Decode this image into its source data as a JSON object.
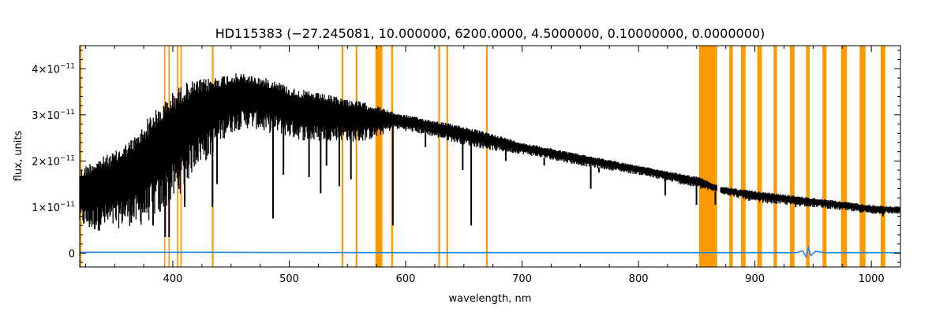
{
  "chart_data": {
    "type": "line",
    "title": "HD115383   (−27.245081, 10.000000, 6200.0000, 4.5000000, 0.10000000, 0.0000000)",
    "xlabel": "wavelength, nm",
    "ylabel": "flux, units",
    "xlim": [
      320,
      1025
    ],
    "ylim": [
      -3e-12,
      4.5e-11
    ],
    "x_ticks": [
      {
        "value": 400,
        "label": "400"
      },
      {
        "value": 500,
        "label": "500"
      },
      {
        "value": 600,
        "label": "600"
      },
      {
        "value": 700,
        "label": "700"
      },
      {
        "value": 800,
        "label": "800"
      },
      {
        "value": 900,
        "label": "900"
      },
      {
        "value": 1000,
        "label": "1000"
      }
    ],
    "y_ticks": [
      {
        "value": 0,
        "mantissa": "0",
        "exponent": ""
      },
      {
        "value": 1e-11,
        "mantissa": "1×10",
        "exponent": "−11"
      },
      {
        "value": 2e-11,
        "mantissa": "2×10",
        "exponent": "−11"
      },
      {
        "value": 3e-11,
        "mantissa": "3×10",
        "exponent": "−11"
      },
      {
        "value": 4e-11,
        "mantissa": "4×10",
        "exponent": "−11"
      }
    ],
    "colors": {
      "spectrum": "#000000",
      "error": "#1e88e5",
      "mask": "#ff9900",
      "axes": "#000000"
    },
    "series": [
      {
        "role": "spectrum-envelope",
        "upper": [
          [
            320,
            1.8e-11
          ],
          [
            330,
            2e-11
          ],
          [
            340,
            2.1e-11
          ],
          [
            350,
            2.2e-11
          ],
          [
            360,
            2.4e-11
          ],
          [
            370,
            2.6e-11
          ],
          [
            380,
            3e-11
          ],
          [
            390,
            3.2e-11
          ],
          [
            400,
            3.5e-11
          ],
          [
            410,
            3.7e-11
          ],
          [
            420,
            3.75e-11
          ],
          [
            430,
            3.8e-11
          ],
          [
            440,
            3.85e-11
          ],
          [
            450,
            3.9e-11
          ],
          [
            460,
            3.9e-11
          ],
          [
            470,
            3.85e-11
          ],
          [
            480,
            3.8e-11
          ],
          [
            490,
            3.75e-11
          ],
          [
            500,
            3.6e-11
          ],
          [
            520,
            3.5e-11
          ],
          [
            540,
            3.4e-11
          ],
          [
            560,
            3.3e-11
          ],
          [
            575,
            3.2e-11
          ],
          [
            590,
            3.05e-11
          ],
          [
            620,
            2.9e-11
          ],
          [
            650,
            2.75e-11
          ],
          [
            680,
            2.55e-11
          ],
          [
            700,
            2.4e-11
          ],
          [
            750,
            2.15e-11
          ],
          [
            800,
            1.9e-11
          ],
          [
            852,
            1.65e-11
          ],
          [
            870,
            1.45e-11
          ],
          [
            900,
            1.35e-11
          ],
          [
            950,
            1.2e-11
          ],
          [
            1000,
            1.05e-11
          ],
          [
            1025,
            1e-11
          ]
        ],
        "lower": [
          [
            320,
            6e-12
          ],
          [
            330,
            4.5e-12
          ],
          [
            340,
            5e-12
          ],
          [
            350,
            5e-12
          ],
          [
            360,
            6e-12
          ],
          [
            370,
            5.5e-12
          ],
          [
            380,
            7e-12
          ],
          [
            390,
            9e-12
          ],
          [
            400,
            1.1e-11
          ],
          [
            410,
            1.4e-11
          ],
          [
            420,
            1.9e-11
          ],
          [
            430,
            2e-11
          ],
          [
            440,
            2.4e-11
          ],
          [
            450,
            2.6e-11
          ],
          [
            460,
            2.7e-11
          ],
          [
            470,
            2.7e-11
          ],
          [
            480,
            2.6e-11
          ],
          [
            490,
            2.6e-11
          ],
          [
            500,
            2.5e-11
          ],
          [
            520,
            2.4e-11
          ],
          [
            540,
            2.45e-11
          ],
          [
            560,
            2.4e-11
          ],
          [
            575,
            2.5e-11
          ],
          [
            590,
            2.7e-11
          ],
          [
            620,
            2.55e-11
          ],
          [
            650,
            2.35e-11
          ],
          [
            680,
            2.2e-11
          ],
          [
            700,
            2.15e-11
          ],
          [
            750,
            1.9e-11
          ],
          [
            800,
            1.7e-11
          ],
          [
            852,
            1.4e-11
          ],
          [
            870,
            1.3e-11
          ],
          [
            900,
            1.1e-11
          ],
          [
            950,
            1e-11
          ],
          [
            1000,
            8.5e-12
          ],
          [
            1025,
            8.5e-12
          ]
        ]
      },
      {
        "role": "spectrum-lines",
        "lines": [
          [
            383,
            6e-12
          ],
          [
            389,
            9e-12
          ],
          [
            393.4,
            3.5e-12
          ],
          [
            396.8,
            3.5e-12
          ],
          [
            410.2,
            1e-11
          ],
          [
            434,
            1e-11
          ],
          [
            438,
            1.5e-11
          ],
          [
            486.1,
            7.5e-12
          ],
          [
            495,
            1.7e-11
          ],
          [
            517,
            1.65e-11
          ],
          [
            527,
            1.3e-11
          ],
          [
            532,
            1.9e-11
          ],
          [
            543,
            1.45e-11
          ],
          [
            553,
            1.6e-11
          ],
          [
            589,
            6e-12
          ],
          [
            617,
            2.3e-11
          ],
          [
            649,
            1.8e-11
          ],
          [
            656.3,
            6e-12
          ],
          [
            686,
            2e-11
          ],
          [
            719,
            1.9e-11
          ],
          [
            759,
            1.4e-11
          ],
          [
            766,
            1.75e-11
          ],
          [
            823,
            1.25e-11
          ],
          [
            849.8,
            1.05e-11
          ],
          [
            866,
            1.05e-11
          ],
          [
            935,
            1e-11
          ],
          [
            950,
            1e-11
          ],
          [
            1010,
            8e-12
          ]
        ]
      },
      {
        "role": "error",
        "points": [
          [
            320,
            2e-13
          ],
          [
            400,
            2e-13
          ],
          [
            500,
            1.5e-13
          ],
          [
            600,
            1e-13
          ],
          [
            700,
            1e-13
          ],
          [
            800,
            1e-13
          ],
          [
            852,
            1e-13
          ],
          [
            900,
            1e-13
          ],
          [
            935,
            1e-13
          ],
          [
            941,
            5e-13
          ],
          [
            944,
            -8e-13
          ],
          [
            946,
            1.2e-12
          ],
          [
            948,
            -5e-13
          ],
          [
            952,
            4e-13
          ],
          [
            960,
            1e-13
          ],
          [
            1025,
            1e-13
          ]
        ]
      }
    ],
    "mask_regions": [
      [
        320,
        321.5
      ],
      [
        392.5,
        393.5
      ],
      [
        396.2,
        397.3
      ],
      [
        403.5,
        404.8
      ],
      [
        406.5,
        407.7
      ],
      [
        433.5,
        435
      ],
      [
        545,
        546.5
      ],
      [
        557,
        558.5
      ],
      [
        574,
        580
      ],
      [
        587.5,
        589.2
      ],
      [
        628,
        629.5
      ],
      [
        635,
        636.5
      ],
      [
        669,
        670.5
      ],
      [
        852,
        867.5
      ],
      [
        878,
        881
      ],
      [
        888,
        892
      ],
      [
        902,
        906
      ],
      [
        916,
        919
      ],
      [
        930,
        934
      ],
      [
        944,
        947
      ],
      [
        958,
        961.5
      ],
      [
        974,
        979
      ],
      [
        990,
        995
      ],
      [
        1008,
        1012
      ]
    ]
  }
}
